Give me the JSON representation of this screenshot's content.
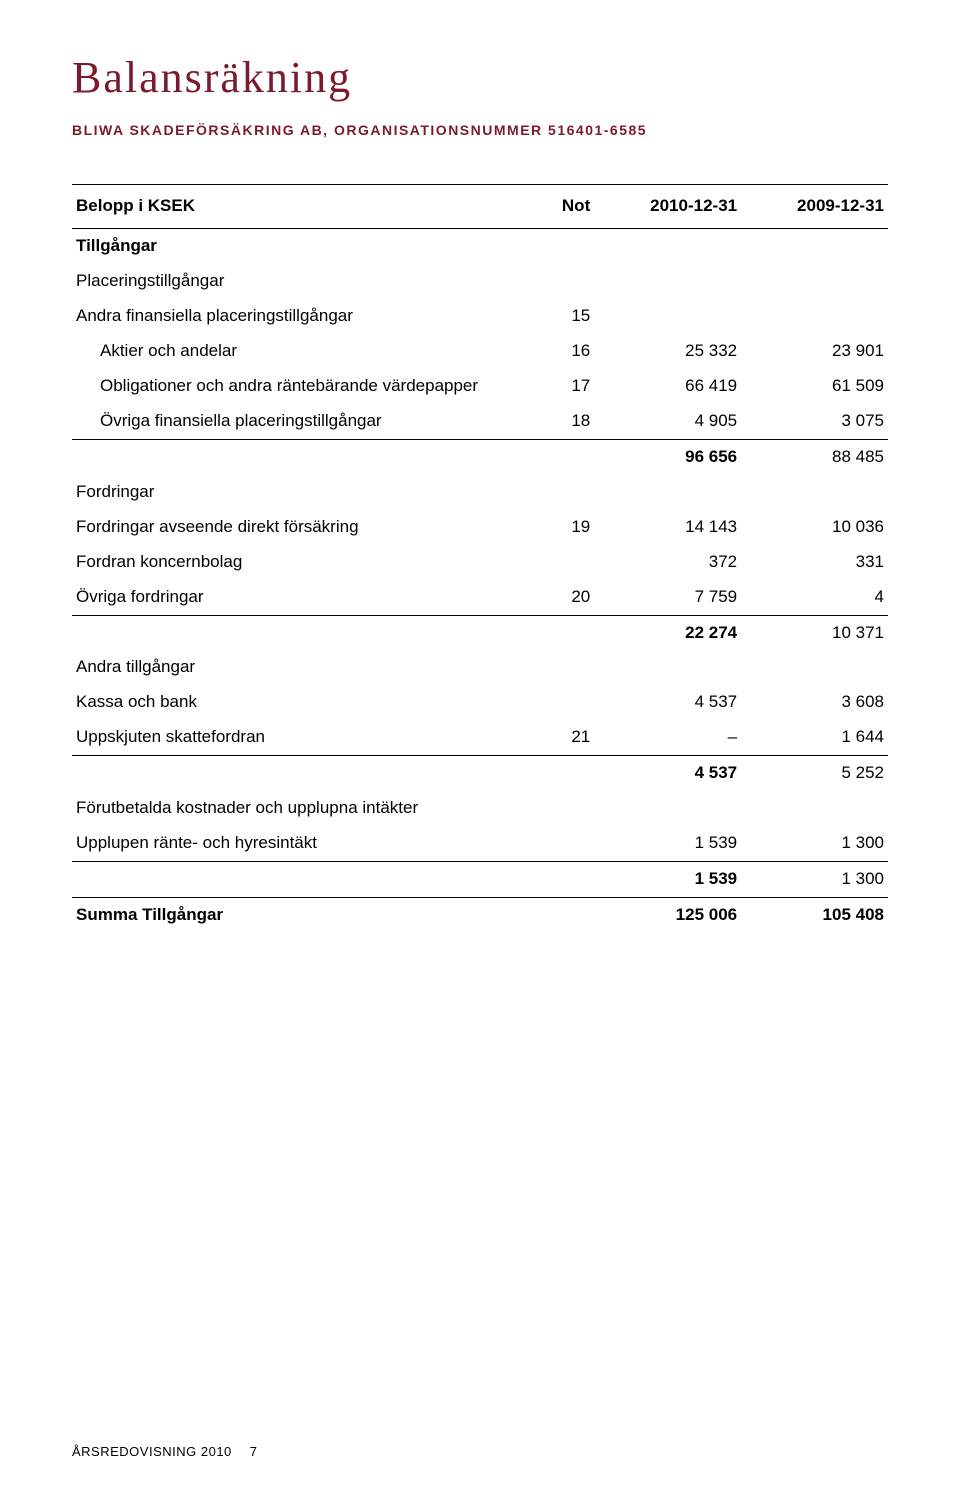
{
  "title": "Balansräkning",
  "subtitle_prefix": "BLIWA SKADEFÖRSÄKRING AB, ORGANISATIONSNUMMER ",
  "subtitle_orgnr": "516401-6585",
  "colors": {
    "heading": "#7a1b2d",
    "text": "#000000",
    "rule": "#000000",
    "background": "#ffffff"
  },
  "header": {
    "label": "Belopp i KSEK",
    "not": "Not",
    "y1": "2010-12-31",
    "y2": "2009-12-31"
  },
  "rows": [
    {
      "kind": "section",
      "label": "Tillgångar"
    },
    {
      "kind": "group",
      "label": "Placeringstillgångar"
    },
    {
      "kind": "item",
      "label": "Andra finansiella placeringstillgångar",
      "not": "15",
      "y1": "",
      "y2": ""
    },
    {
      "kind": "sub",
      "label": "Aktier och andelar",
      "not": "16",
      "y1": "25 332",
      "y2": "23 901"
    },
    {
      "kind": "sub",
      "label": "Obligationer och andra räntebärande värdepapper",
      "not": "17",
      "y1": "66 419",
      "y2": "61 509"
    },
    {
      "kind": "sub",
      "label": "Övriga finansiella placeringstillgångar",
      "not": "18",
      "y1": "4 905",
      "y2": "3 075",
      "line": true
    },
    {
      "kind": "subtotal",
      "label": "",
      "not": "",
      "y1": "96 656",
      "y2": "88 485"
    },
    {
      "kind": "group",
      "label": "Fordringar"
    },
    {
      "kind": "item",
      "label": "Fordringar avseende direkt försäkring",
      "not": "19",
      "y1": "14 143",
      "y2": "10 036"
    },
    {
      "kind": "item",
      "label": "Fordran koncernbolag",
      "not": "",
      "y1": "372",
      "y2": "331"
    },
    {
      "kind": "item",
      "label": "Övriga fordringar",
      "not": "20",
      "y1": "7 759",
      "y2": "4",
      "line": true
    },
    {
      "kind": "subtotal",
      "label": "",
      "not": "",
      "y1": "22 274",
      "y2": "10 371"
    },
    {
      "kind": "group",
      "label": "Andra tillgångar"
    },
    {
      "kind": "item",
      "label": "Kassa och bank",
      "not": "",
      "y1": "4 537",
      "y2": "3 608"
    },
    {
      "kind": "item",
      "label": "Uppskjuten skattefordran",
      "not": "21",
      "y1": "–",
      "y2": "1 644",
      "line": true
    },
    {
      "kind": "subtotal",
      "label": "",
      "not": "",
      "y1": "4 537",
      "y2": "5 252"
    },
    {
      "kind": "group",
      "label": "Förutbetalda kostnader och upplupna intäkter"
    },
    {
      "kind": "item",
      "label": "Upplupen ränte- och hyresintäkt",
      "not": "",
      "y1": "1 539",
      "y2": "1 300",
      "line": true
    },
    {
      "kind": "subtotal",
      "label": "",
      "not": "",
      "y1": "1 539",
      "y2": "1 300",
      "line": true
    },
    {
      "kind": "sum",
      "label": "Summa Tillgångar",
      "not": "",
      "y1": "125 006",
      "y2": "105 408"
    }
  ],
  "footer": {
    "label": "ÅRSREDOVISNING 2010",
    "page": "7"
  }
}
